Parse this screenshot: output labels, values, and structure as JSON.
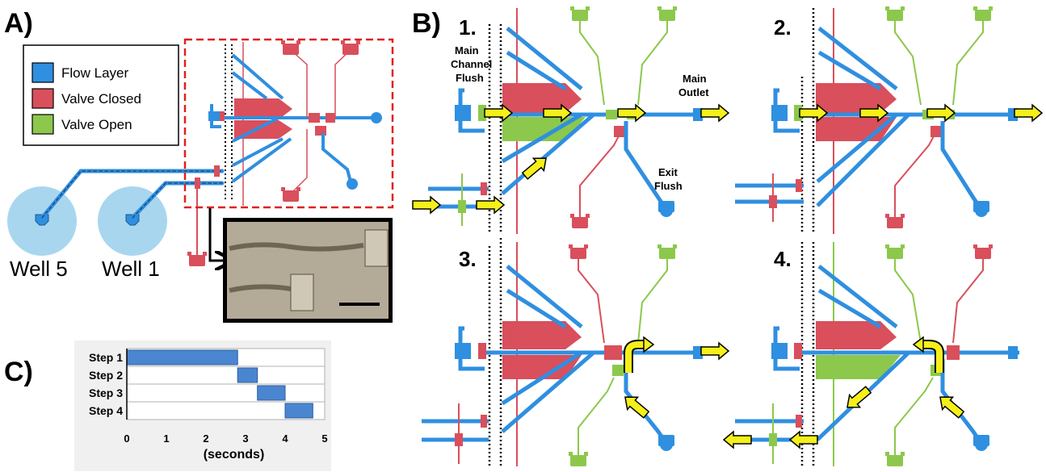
{
  "panels": {
    "a_label": "A)",
    "b_label": "B)",
    "c_label": "C)"
  },
  "legend": {
    "items": [
      {
        "label": "Flow Layer",
        "color": "#2f8fe0"
      },
      {
        "label": "Valve Closed",
        "color": "#d94f5c"
      },
      {
        "label": "Valve Open",
        "color": "#8cc84b"
      }
    ]
  },
  "wells": [
    {
      "label": "Well 5"
    },
    {
      "label": "Well 1"
    }
  ],
  "steps": {
    "s1": "1.",
    "s2": "2.",
    "s3": "3.",
    "s4": "4."
  },
  "annotations": {
    "main_channel_flush_1": "Main",
    "main_channel_flush_2": "Channel",
    "main_channel_flush_3": "Flush",
    "main_outlet_1": "Main",
    "main_outlet_2": "Outlet",
    "exit_flush_1": "Exit",
    "exit_flush_2": "Flush"
  },
  "colors": {
    "flow": "#2f8fe0",
    "valve_closed": "#d94f5c",
    "valve_open": "#8cc84b",
    "arrow": "#f5ef1a",
    "well": "#a9d6ef",
    "gantt_bar": "#4a86d0",
    "callout": "#e02020"
  },
  "chart_data": {
    "type": "bar",
    "categories": [
      "Step 1",
      "Step 2",
      "Step 3",
      "Step 4"
    ],
    "series": [
      {
        "starts": [
          0,
          2.8,
          3.3,
          4.0
        ],
        "ends": [
          2.8,
          3.3,
          4.0,
          4.7
        ]
      }
    ],
    "xlabel": "(seconds)",
    "xlim": [
      0,
      5
    ],
    "xticks": [
      "0",
      "1",
      "2",
      "3",
      "4",
      "5"
    ]
  }
}
